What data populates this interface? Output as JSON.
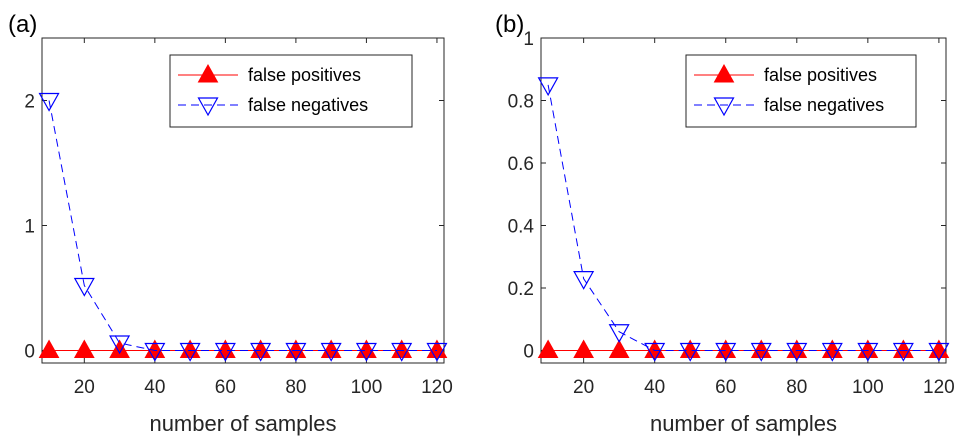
{
  "chart_data": [
    {
      "panel_label": "(a)",
      "type": "line",
      "xlabel": "number of samples",
      "ylabel": "",
      "xlim": [
        8,
        122
      ],
      "ylim": [
        -0.1,
        2.5
      ],
      "xticks": [
        20,
        40,
        60,
        80,
        100,
        120
      ],
      "yticks": [
        0,
        1,
        2
      ],
      "legend_position": "top-right",
      "grid": false,
      "x": [
        10,
        20,
        30,
        40,
        50,
        60,
        70,
        80,
        90,
        100,
        110,
        120
      ],
      "series": [
        {
          "name": "false positives",
          "color": "#ff0000",
          "marker": "triangle-up-filled",
          "line": "solid",
          "values": [
            0,
            0,
            0,
            0,
            0,
            0,
            0,
            0,
            0,
            0,
            0,
            0
          ]
        },
        {
          "name": "false negatives",
          "color": "#0000ff",
          "marker": "triangle-down-open",
          "line": "dashed",
          "values": [
            2.0,
            0.52,
            0.06,
            0,
            0,
            0,
            0,
            0,
            0,
            0,
            0,
            0
          ]
        }
      ]
    },
    {
      "panel_label": "(b)",
      "type": "line",
      "xlabel": "number of samples",
      "ylabel": "",
      "xlim": [
        8,
        122
      ],
      "ylim": [
        -0.04,
        1
      ],
      "xticks": [
        20,
        40,
        60,
        80,
        100,
        120
      ],
      "yticks": [
        0,
        0.2,
        0.4,
        0.6,
        0.8,
        1
      ],
      "legend_position": "top-right",
      "grid": false,
      "x": [
        10,
        20,
        30,
        40,
        50,
        60,
        70,
        80,
        90,
        100,
        110,
        120
      ],
      "series": [
        {
          "name": "false positives",
          "color": "#ff0000",
          "marker": "triangle-up-filled",
          "line": "solid",
          "values": [
            0,
            0,
            0,
            0,
            0,
            0,
            0,
            0,
            0,
            0,
            0,
            0
          ]
        },
        {
          "name": "false negatives",
          "color": "#0000ff",
          "marker": "triangle-down-open",
          "line": "dashed",
          "values": [
            0.85,
            0.23,
            0.06,
            0,
            0,
            0,
            0,
            0,
            0,
            0,
            0,
            0
          ]
        }
      ]
    }
  ]
}
